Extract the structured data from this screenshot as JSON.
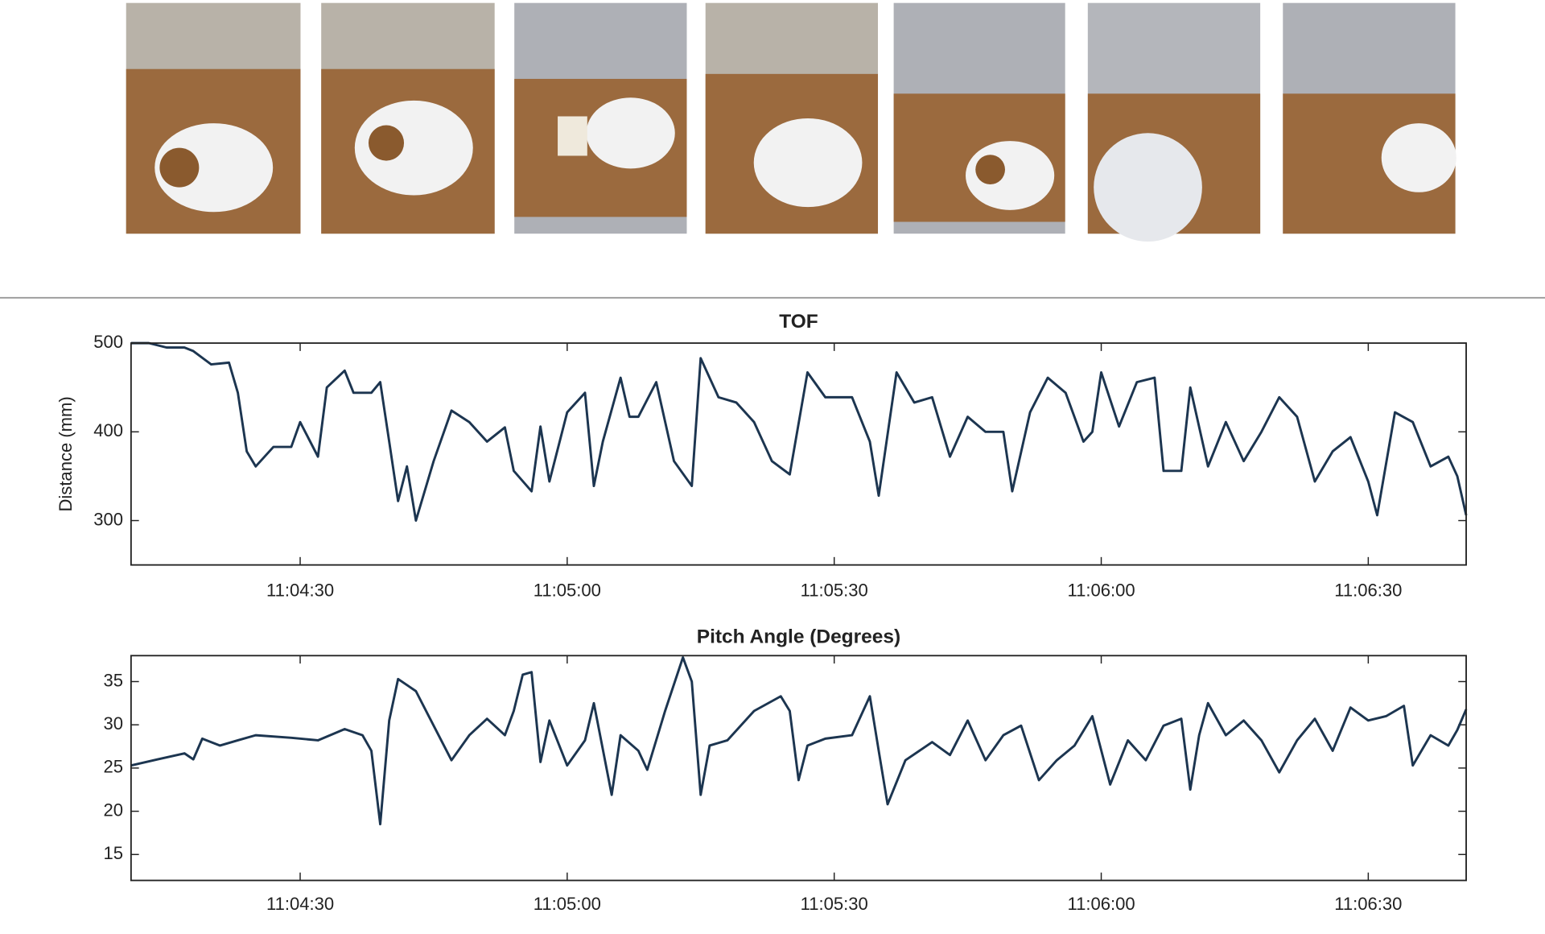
{
  "chart_data": [
    {
      "type": "line",
      "title": "TOF",
      "ylabel": "Distance (mm)",
      "color": "#1c3550",
      "x": [
        "11:04:11",
        "11:04:13",
        "11:04:15",
        "11:04:17",
        "11:04:18",
        "11:04:20",
        "11:04:22",
        "11:04:23",
        "11:04:24",
        "11:04:25",
        "11:04:27",
        "11:04:29",
        "11:04:30",
        "11:04:32",
        "11:04:33",
        "11:04:35",
        "11:04:36",
        "11:04:38",
        "11:04:39",
        "11:04:40",
        "11:04:41",
        "11:04:42",
        "11:04:43",
        "11:04:45",
        "11:04:47",
        "11:04:49",
        "11:04:51",
        "11:04:53",
        "11:04:54",
        "11:04:56",
        "11:04:57",
        "11:04:58",
        "11:05:00",
        "11:05:02",
        "11:05:03",
        "11:05:04",
        "11:05:06",
        "11:05:07",
        "11:05:08",
        "11:05:10",
        "11:05:12",
        "11:05:14",
        "11:05:15",
        "11:05:17",
        "11:05:19",
        "11:05:21",
        "11:05:23",
        "11:05:25",
        "11:05:27",
        "11:05:29",
        "11:05:32",
        "11:05:34",
        "11:05:35",
        "11:05:37",
        "11:05:39",
        "11:05:41",
        "11:05:43",
        "11:05:45",
        "11:05:47",
        "11:05:49",
        "11:05:50",
        "11:05:52",
        "11:05:54",
        "11:05:56",
        "11:05:58",
        "11:05:59",
        "11:06:00",
        "11:06:02",
        "11:06:04",
        "11:06:06",
        "11:06:07",
        "11:06:09",
        "11:06:10",
        "11:06:12",
        "11:06:14",
        "11:06:16",
        "11:06:18",
        "11:06:20",
        "11:06:22",
        "11:06:24",
        "11:06:26",
        "11:06:28",
        "11:06:30",
        "11:06:31",
        "11:06:33",
        "11:06:35",
        "11:06:37",
        "11:06:39",
        "11:06:40",
        "11:06:41"
      ],
      "values": [
        500,
        500,
        495,
        495,
        491,
        476,
        478,
        444,
        378,
        361,
        383,
        383,
        411,
        372,
        450,
        469,
        444,
        444,
        456,
        389,
        322,
        361,
        300,
        367,
        424,
        411,
        389,
        405,
        356,
        333,
        406,
        344,
        422,
        444,
        339,
        389,
        461,
        417,
        417,
        456,
        367,
        339,
        483,
        439,
        433,
        411,
        367,
        352,
        467,
        439,
        439,
        389,
        328,
        467,
        433,
        439,
        372,
        417,
        400,
        400,
        333,
        422,
        461,
        444,
        389,
        400,
        467,
        406,
        456,
        461,
        356,
        356,
        450,
        361,
        411,
        367,
        400,
        439,
        417,
        344,
        378,
        394,
        344,
        306,
        422,
        411,
        361,
        372,
        350,
        306
      ],
      "xlim": [
        "11:04:11",
        "11:06:41"
      ],
      "xticks": [
        "11:04:30",
        "11:05:00",
        "11:05:30",
        "11:06:00",
        "11:06:30"
      ],
      "ylim": [
        250,
        500
      ],
      "yticks": [
        300,
        400,
        500
      ],
      "grid": false
    },
    {
      "type": "line",
      "title": "Pitch Angle (Degrees)",
      "color": "#1c3550",
      "x": [
        "11:04:11",
        "11:04:14",
        "11:04:17",
        "11:04:18",
        "11:04:19",
        "11:04:21",
        "11:04:23",
        "11:04:25",
        "11:04:29",
        "11:04:32",
        "11:04:35",
        "11:04:37",
        "11:04:38",
        "11:04:39",
        "11:04:40",
        "11:04:41",
        "11:04:43",
        "11:04:45",
        "11:04:47",
        "11:04:49",
        "11:04:51",
        "11:04:53",
        "11:04:54",
        "11:04:55",
        "11:04:56",
        "11:04:57",
        "11:04:58",
        "11:05:00",
        "11:05:02",
        "11:05:03",
        "11:05:05",
        "11:05:06",
        "11:05:08",
        "11:05:09",
        "11:05:11",
        "11:05:13",
        "11:05:14",
        "11:05:15",
        "11:05:16",
        "11:05:18",
        "11:05:21",
        "11:05:24",
        "11:05:25",
        "11:05:26",
        "11:05:27",
        "11:05:29",
        "11:05:32",
        "11:05:34",
        "11:05:35",
        "11:05:36",
        "11:05:38",
        "11:05:41",
        "11:05:43",
        "11:05:45",
        "11:05:47",
        "11:05:49",
        "11:05:51",
        "11:05:53",
        "11:05:55",
        "11:05:57",
        "11:05:59",
        "11:06:01",
        "11:06:03",
        "11:06:05",
        "11:06:07",
        "11:06:09",
        "11:06:10",
        "11:06:11",
        "11:06:12",
        "11:06:14",
        "11:06:16",
        "11:06:18",
        "11:06:20",
        "11:06:22",
        "11:06:24",
        "11:06:26",
        "11:06:28",
        "11:06:30",
        "11:06:32",
        "11:06:34",
        "11:06:35",
        "11:06:37",
        "11:06:39",
        "11:06:40",
        "11:06:41"
      ],
      "values": [
        25.3,
        26,
        26.7,
        26,
        28.4,
        27.6,
        28.2,
        28.8,
        28.5,
        28.2,
        29.5,
        28.8,
        27,
        18.5,
        30.5,
        35.3,
        33.9,
        29.9,
        25.9,
        28.8,
        30.7,
        28.8,
        31.6,
        35.8,
        36.1,
        25.7,
        30.5,
        25.3,
        28.2,
        32.5,
        21.9,
        28.8,
        27,
        24.8,
        31.6,
        37.8,
        35,
        21.9,
        27.6,
        28.2,
        31.6,
        33.3,
        31.6,
        23.6,
        27.6,
        28.4,
        28.8,
        33.3,
        27,
        20.8,
        25.9,
        28,
        26.5,
        30.5,
        25.9,
        28.8,
        29.9,
        23.6,
        25.9,
        27.6,
        31,
        23.1,
        28.2,
        25.9,
        29.9,
        30.7,
        22.5,
        28.8,
        32.5,
        28.8,
        30.5,
        28.2,
        24.5,
        28.2,
        30.7,
        27,
        32,
        30.5,
        31,
        32.2,
        25.3,
        28.8,
        27.6,
        29.4,
        31.8
      ],
      "xlim": [
        "11:04:11",
        "11:06:41"
      ],
      "xticks": [
        "11:04:30",
        "11:05:00",
        "11:05:30",
        "11:06:00",
        "11:06:30"
      ],
      "ylim": [
        12,
        38
      ],
      "yticks": [
        15,
        20,
        25,
        30,
        35
      ],
      "grid": false
    }
  ]
}
